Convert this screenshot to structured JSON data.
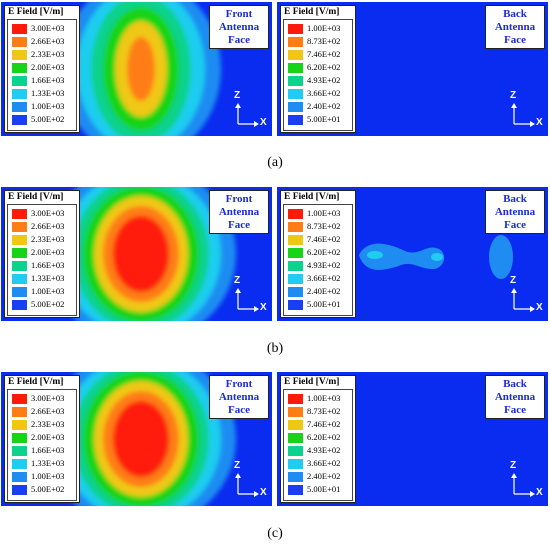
{
  "legend_colors": [
    "#ff1a0a",
    "#ff7d14",
    "#f0c814",
    "#17d417",
    "#0bd28c",
    "#1ecdf0",
    "#1f8cf2",
    "#1a3ef2"
  ],
  "rows": [
    {
      "caption": "(a)",
      "front": {
        "label_lines": [
          "Front",
          "Antenna",
          "Face"
        ],
        "legend_title": "E Field [V/m]",
        "ticks": [
          "3.00E+03",
          "2.66E+03",
          "2.33E+03",
          "2.00E+03",
          "1.66E+03",
          "1.33E+03",
          "1.00E+03",
          "5.00E+02"
        ],
        "peak_level": "orange",
        "axis": {
          "z": "Z",
          "x": "X"
        }
      },
      "back": {
        "label_lines": [
          "Back",
          "Antenna",
          "Face"
        ],
        "legend_title": "E Field [V/m]",
        "ticks": [
          "1.00E+03",
          "8.73E+02",
          "7.46E+02",
          "6.20E+02",
          "4.93E+02",
          "3.66E+02",
          "2.40E+02",
          "5.00E+01"
        ],
        "hotspots": false,
        "axis": {
          "z": "Z",
          "x": "X"
        }
      }
    },
    {
      "caption": "(b)",
      "front": {
        "label_lines": [
          "Front",
          "Antenna",
          "Face"
        ],
        "legend_title": "E Field [V/m]",
        "ticks": [
          "3.00E+03",
          "2.66E+03",
          "2.33E+03",
          "2.00E+03",
          "1.66E+03",
          "1.33E+03",
          "1.00E+03",
          "5.00E+02"
        ],
        "peak_level": "red",
        "axis": {
          "z": "Z",
          "x": "X"
        }
      },
      "back": {
        "label_lines": [
          "Back",
          "Antenna",
          "Face"
        ],
        "legend_title": "E Field [V/m]",
        "ticks": [
          "1.00E+03",
          "8.73E+02",
          "7.46E+02",
          "6.20E+02",
          "4.93E+02",
          "3.66E+02",
          "2.40E+02",
          "5.00E+01"
        ],
        "hotspots": true,
        "axis": {
          "z": "Z",
          "x": "X"
        }
      }
    },
    {
      "caption": "(c)",
      "front": {
        "label_lines": [
          "Front",
          "Antenna",
          "Face"
        ],
        "legend_title": "E Field [V/m]",
        "ticks": [
          "3.00E+03",
          "2.66E+03",
          "2.33E+03",
          "2.00E+03",
          "1.66E+03",
          "1.33E+03",
          "1.00E+03",
          "5.00E+02"
        ],
        "peak_level": "red",
        "axis": {
          "z": "Z",
          "x": "X"
        }
      },
      "back": {
        "label_lines": [
          "Back",
          "Antenna",
          "Face"
        ],
        "legend_title": "E Field [V/m]",
        "ticks": [
          "1.00E+03",
          "8.73E+02",
          "7.46E+02",
          "6.20E+02",
          "4.93E+02",
          "3.66E+02",
          "2.40E+02",
          "5.00E+01"
        ],
        "hotspots": false,
        "axis": {
          "z": "Z",
          "x": "X"
        }
      }
    }
  ]
}
